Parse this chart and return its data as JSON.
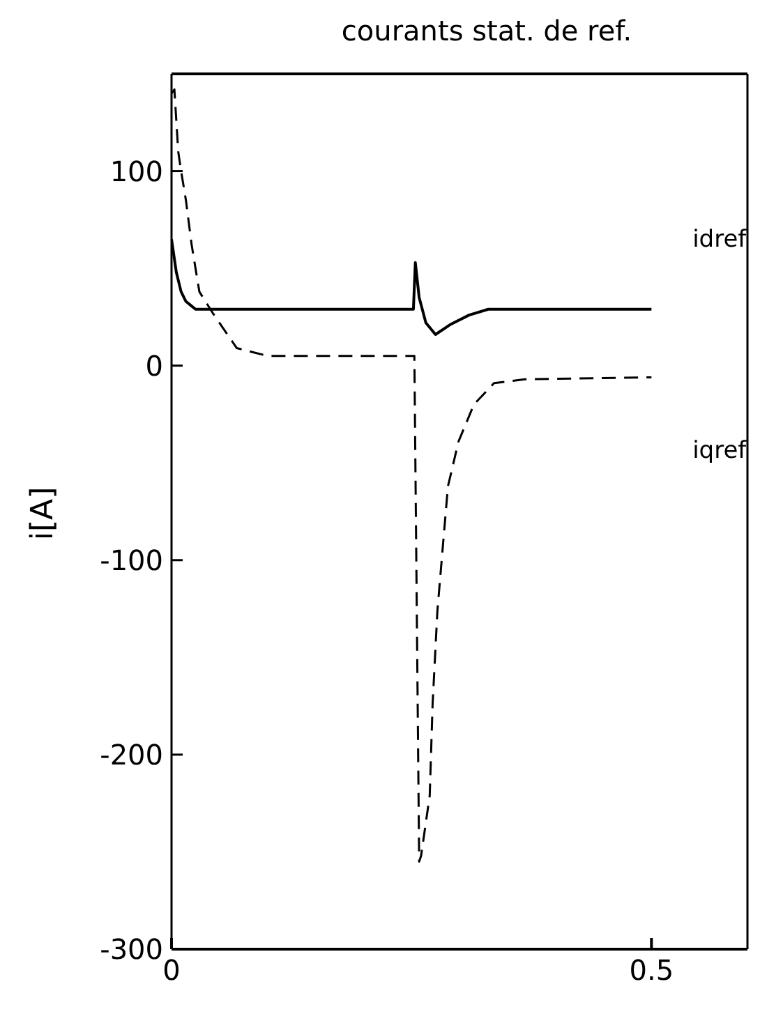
{
  "chart_data": {
    "type": "line",
    "title": "courants stat. de ref.",
    "ylabel": "i[A]",
    "xlim": [
      0,
      0.6
    ],
    "xticks": [
      0,
      0.5
    ],
    "ylim": [
      -300,
      150
    ],
    "yticks": [
      -300,
      -200,
      -100,
      0,
      100
    ],
    "legend": false,
    "marker": "none",
    "series": [
      {
        "name": "idref",
        "color": "#000000",
        "line_style": "solid",
        "x": [
          0,
          0.005,
          0.01,
          0.015,
          0.02,
          0.025,
          0.05,
          0.1,
          0.2,
          0.252,
          0.254,
          0.258,
          0.265,
          0.275,
          0.29,
          0.31,
          0.33,
          0.4,
          0.5
        ],
        "values": [
          65,
          48,
          38,
          33,
          31,
          29,
          29,
          29,
          29,
          29,
          53,
          35,
          22,
          16,
          21,
          26,
          29,
          29,
          29
        ]
      },
      {
        "name": "iqref",
        "color": "#000000",
        "line_style": "dashed",
        "x": [
          0,
          0.003,
          0.007,
          0.01,
          0.015,
          0.021,
          0.029,
          0.043,
          0.068,
          0.1,
          0.2,
          0.253,
          0.258,
          0.26,
          0.269,
          0.272,
          0.277,
          0.283,
          0.288,
          0.299,
          0.315,
          0.336,
          0.368,
          0.5
        ],
        "values": [
          140,
          142,
          110,
          100,
          85,
          62,
          38,
          27,
          9,
          5,
          5,
          5,
          -255,
          -252,
          -221,
          -174,
          -126,
          -91,
          -62,
          -39,
          -20,
          -9,
          -7,
          -6
        ]
      }
    ]
  }
}
